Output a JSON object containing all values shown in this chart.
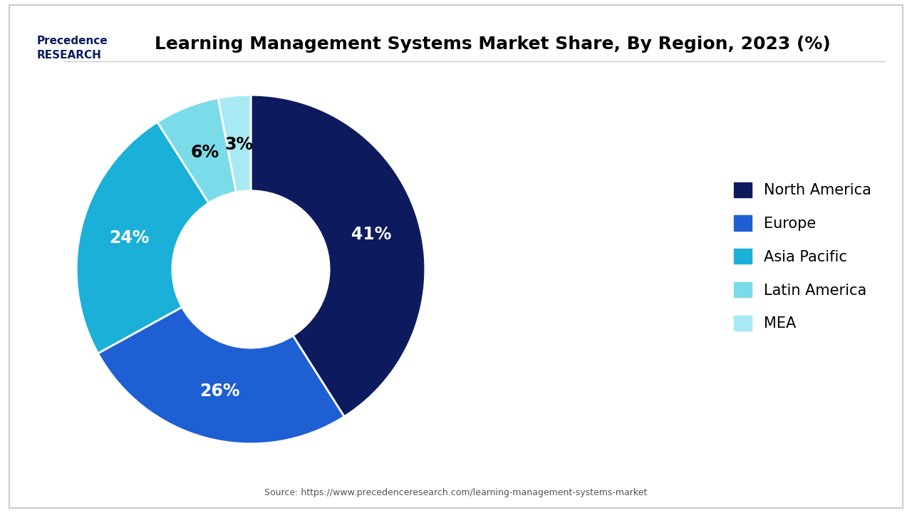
{
  "title": "Learning Management Systems Market Share, By Region, 2023 (%)",
  "labels": [
    "North America",
    "Europe",
    "Asia Pacific",
    "Latin America",
    "MEA"
  ],
  "values": [
    41,
    26,
    24,
    6,
    3
  ],
  "colors": [
    "#0d1b5e",
    "#1e5fd4",
    "#1ab0d8",
    "#7adce8",
    "#a8eaf4"
  ],
  "pct_labels": [
    "41%",
    "26%",
    "24%",
    "6%",
    "3%"
  ],
  "pct_colors": [
    "white",
    "white",
    "white",
    "black",
    "black"
  ],
  "source_text": "Source: https://www.precedenceresearch.com/learning-management-systems-market",
  "background_color": "#ffffff",
  "title_fontsize": 18,
  "legend_fontsize": 15,
  "pct_fontsize": 17
}
